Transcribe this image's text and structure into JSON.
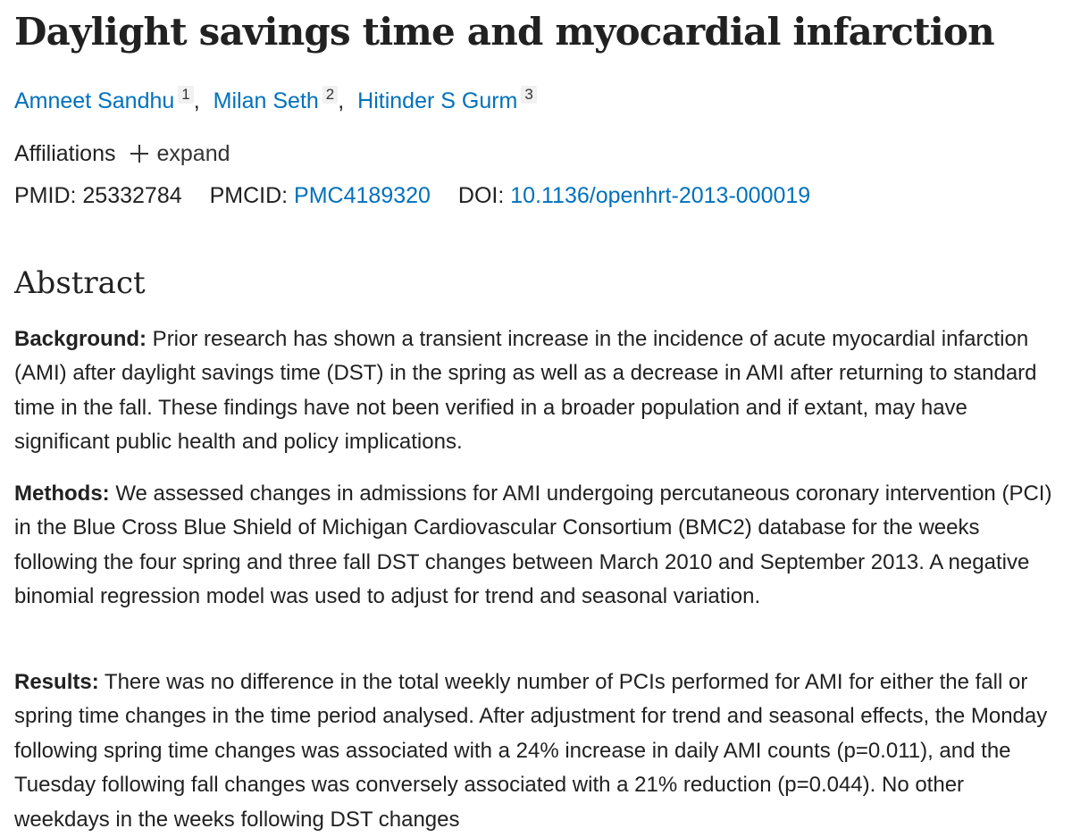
{
  "article": {
    "title": "Daylight savings time and myocardial infarction",
    "authors": [
      {
        "name": "Amneet Sandhu",
        "sup": "1"
      },
      {
        "name": "Milan Seth",
        "sup": "2"
      },
      {
        "name": "Hitinder S Gurm",
        "sup": "3"
      }
    ],
    "affiliations_label": "Affiliations",
    "affiliations_toggle": "expand",
    "ids": {
      "pmid_label": "PMID:",
      "pmid": "25332784",
      "pmcid_label": "PMCID:",
      "pmcid": "PMC4189320",
      "doi_label": "DOI:",
      "doi": "10.1136/openhrt-2013-000019"
    }
  },
  "abstract": {
    "heading": "Abstract",
    "sections": [
      {
        "label": "Background:",
        "text": " Prior research has shown a transient increase in the incidence of acute myocardial infarction (AMI) after daylight savings time (DST) in the spring as well as a decrease in AMI after returning to standard time in the fall. These findings have not been verified in a broader population and if extant, may have significant public health and policy implications."
      },
      {
        "label": "Methods:",
        "text": " We assessed changes in admissions for AMI undergoing percutaneous coronary intervention (PCI) in the Blue Cross Blue Shield of Michigan Cardiovascular Consortium (BMC2) database for the weeks following the four spring and three fall DST changes between March 2010 and September 2013. A negative binomial regression model was used to adjust for trend and seasonal variation."
      },
      {
        "label": "Results:",
        "text": " There was no difference in the total weekly number of PCIs performed for AMI for either the fall or spring time changes in the time period analysed. After adjustment for trend and seasonal effects, the Monday following spring time changes was associated with a 24% increase in daily AMI counts (p=0.011), and the Tuesday following fall changes was conversely associated with a 21% reduction (p=0.044). No other weekdays in the weeks following DST changes"
      }
    ]
  }
}
